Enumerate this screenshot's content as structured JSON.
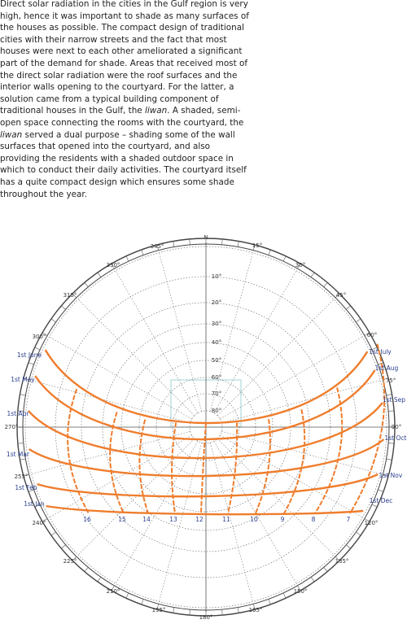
{
  "paragraph": [
    "Direct solar radiation in the cities in the Gulf region is very high, hence it was important to shade as many surfaces of the houses as possible. The compact design of traditional cities with their narrow streets and the fact that most houses were next to each other ameliorated a significant part of the demand for shade. Areas that received most of the direct solar radiation were the roof surfaces and the interior walls opening to the courtyard. For the latter, a solution came from a typical building component of traditional houses in the Gulf, the ",
    "liwan",
    ". A shaded, semi-open space connecting the rooms with the courtyard, the ",
    "liwan",
    " served a dual purpose – shading some of the wall surfaces that opened into the courtyard, and also providing the residents with a shaded outdoor space in which to conduct their daily activities. The courtyard itself has a quite compact design which ensures some shade throughout the year."
  ],
  "diagram": {
    "north": "N",
    "azimuth_labels": [
      "345°",
      "15°",
      "330°",
      "30°",
      "315°",
      "45°",
      "300°",
      "60°",
      "75°",
      "270°",
      "90°",
      "255°",
      "240°",
      "120°",
      "225°",
      "135°",
      "210°",
      "150°",
      "195°",
      "165°",
      "180°"
    ],
    "altitude_labels": [
      "10°",
      "20°",
      "30°",
      "40°",
      "50°",
      "60°",
      "70°",
      "80°"
    ],
    "months_left": [
      "1st June",
      "1st May",
      "1st Apr",
      "1st Mar",
      "1st Feb",
      "1st Jan"
    ],
    "months_right": [
      "1st July",
      "1st Aug",
      "1st Sep",
      "1st Oct",
      "1st Nov",
      "1st Dec"
    ],
    "hours": [
      "16",
      "15",
      "14",
      "13",
      "12",
      "11",
      "10",
      "9",
      "8",
      "7"
    ]
  }
}
